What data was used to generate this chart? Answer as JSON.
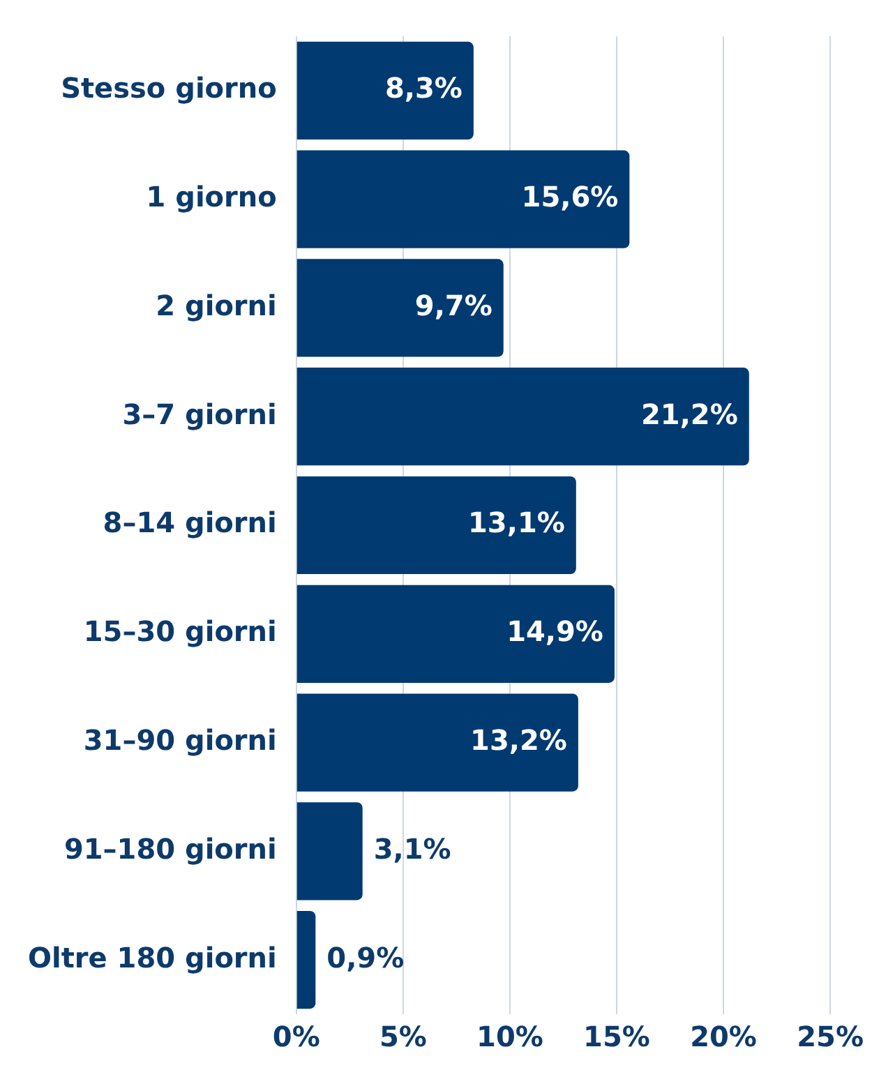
{
  "chart_data": {
    "type": "bar",
    "orientation": "horizontal",
    "categories": [
      "Stesso giorno",
      "1 giorno",
      "2 giorni",
      "3–7 giorni",
      "8–14 giorni",
      "15–30 giorni",
      "31–90 giorni",
      "91–180 giorni",
      "Oltre 180 giorni"
    ],
    "values": [
      8.3,
      15.6,
      9.7,
      21.2,
      13.1,
      14.9,
      13.2,
      3.1,
      0.9
    ],
    "value_labels": [
      "8,3%",
      "15,6%",
      "9,7%",
      "21,2%",
      "13,1%",
      "14,9%",
      "13,2%",
      "3,1%",
      "0,9%"
    ],
    "color": "#003a70",
    "xlim": [
      0,
      25
    ],
    "xticks": [
      {
        "value": 0,
        "label": "0%"
      },
      {
        "value": 5,
        "label": "5%"
      },
      {
        "value": 10,
        "label": "10%"
      },
      {
        "value": 15,
        "label": "15%"
      },
      {
        "value": 20,
        "label": "20%"
      },
      {
        "value": 25,
        "label": "25%"
      }
    ],
    "grid": "x",
    "legend": false
  }
}
